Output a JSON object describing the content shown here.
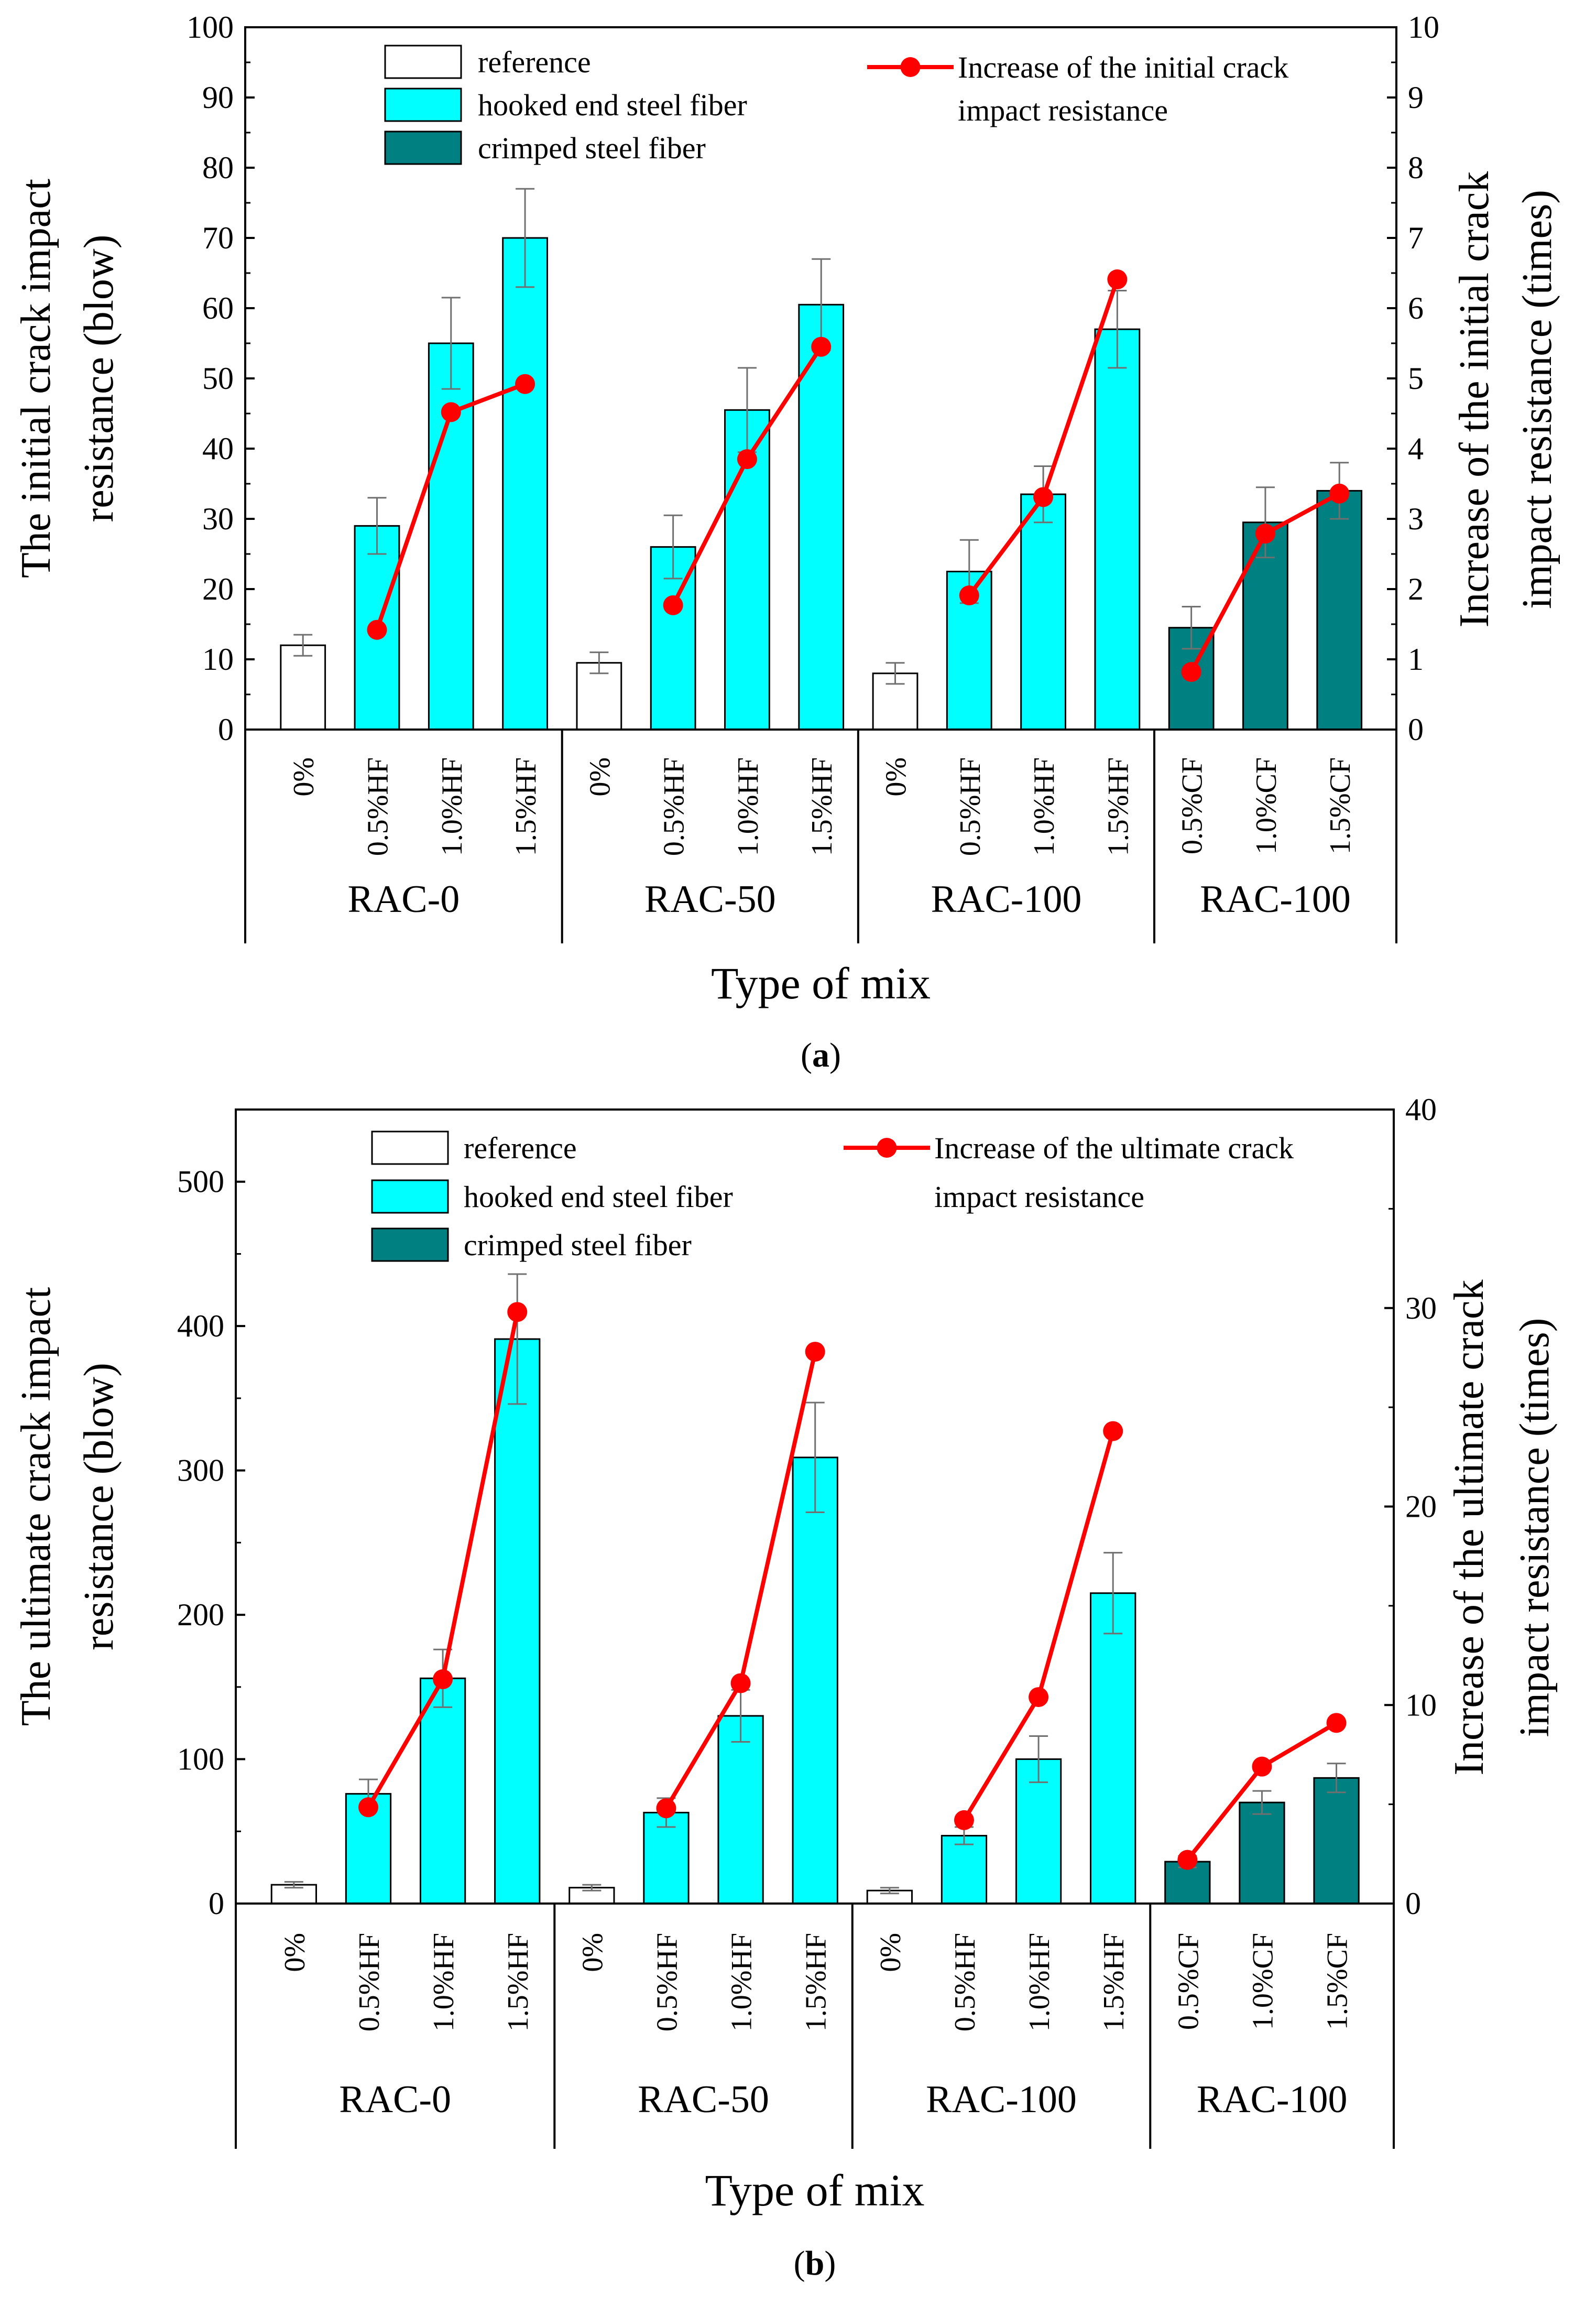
{
  "chart_data": [
    {
      "type": "bar",
      "panel": "a",
      "xlabel": "Type of mix",
      "ylabel_lines": [
        "The initial crack impact",
        "resistance (blow)"
      ],
      "y2label_lines": [
        "Increase of the initial crack",
        "impact resistance (times)"
      ],
      "ylim": [
        0,
        100
      ],
      "y2lim": [
        0,
        10
      ],
      "yticks": [
        "0",
        "10",
        "20",
        "30",
        "40",
        "50",
        "60",
        "70",
        "80",
        "90",
        "100"
      ],
      "y2ticks": [
        "0",
        "1",
        "2",
        "3",
        "4",
        "5",
        "6",
        "7",
        "8",
        "9",
        "10"
      ],
      "categories": [
        "0%",
        "0.5%HF",
        "1.0%HF",
        "1.5%HF",
        "0%",
        "0.5%HF",
        "1.0%HF",
        "1.5%HF",
        "0%",
        "0.5%HF",
        "1.0%HF",
        "1.5%HF",
        "0.5%CF",
        "1.0%CF",
        "1.5%CF"
      ],
      "groups": [
        "RAC-0",
        "RAC-50",
        "RAC-100",
        "RAC-100"
      ],
      "bar_types": [
        "reference",
        "hooked",
        "hooked",
        "hooked",
        "reference",
        "hooked",
        "hooked",
        "hooked",
        "reference",
        "hooked",
        "hooked",
        "hooked",
        "crimped",
        "crimped",
        "crimped"
      ],
      "values": [
        12,
        29,
        55,
        70,
        9.5,
        26,
        45.5,
        60.5,
        8,
        22.5,
        33.5,
        57,
        14.5,
        29.5,
        34
      ],
      "errors": [
        1.5,
        4,
        6.5,
        7,
        1.5,
        4.5,
        6,
        6.5,
        1.5,
        4.5,
        4,
        5.5,
        3,
        5,
        4
      ],
      "line_values": [
        1.42,
        4.52,
        4.92,
        1.77,
        3.85,
        5.45,
        1.91,
        3.31,
        6.41,
        0.82,
        2.79,
        3.36
      ],
      "line_indices": [
        1,
        2,
        3,
        5,
        6,
        7,
        9,
        10,
        11,
        12,
        13,
        14
      ],
      "legend": {
        "reference": "reference",
        "hooked": "hooked end steel fiber",
        "crimped": "crimped steel fiber",
        "line_lines": [
          "Increase of the initial crack",
          "impact resistance"
        ]
      },
      "panel_label": "a"
    },
    {
      "type": "bar",
      "panel": "b",
      "xlabel": "Type of mix",
      "ylabel_lines": [
        "The ultimate crack impact",
        "resistance (blow)"
      ],
      "y2label_lines": [
        "Increase of the ultimate crack",
        "impact resistance (times)"
      ],
      "ylim": [
        0,
        550
      ],
      "y2lim": [
        0,
        40
      ],
      "yticks": [
        "0",
        "100",
        "200",
        "300",
        "400",
        "500"
      ],
      "y2ticks": [
        "0",
        "10",
        "20",
        "30",
        "40"
      ],
      "categories": [
        "0%",
        "0.5%HF",
        "1.0%HF",
        "1.5%HF",
        "0%",
        "0.5%HF",
        "1.0%HF",
        "1.5%HF",
        "0%",
        "0.5%HF",
        "1.0%HF",
        "1.5%HF",
        "0.5%CF",
        "1.0%CF",
        "1.5%CF"
      ],
      "groups": [
        "RAC-0",
        "RAC-50",
        "RAC-100",
        "RAC-100"
      ],
      "bar_types": [
        "reference",
        "hooked",
        "hooked",
        "hooked",
        "reference",
        "hooked",
        "hooked",
        "hooked",
        "reference",
        "hooked",
        "hooked",
        "hooked",
        "crimped",
        "crimped",
        "crimped"
      ],
      "values": [
        13,
        76,
        156,
        391,
        11,
        63,
        130,
        309,
        9,
        47,
        100,
        215,
        29,
        70,
        87
      ],
      "errors": [
        2,
        10,
        20,
        45,
        2,
        10,
        18,
        38,
        2,
        6,
        16,
        28,
        4,
        8,
        10
      ],
      "line_values": [
        4.85,
        11.3,
        29.8,
        4.8,
        11.1,
        27.8,
        4.2,
        10.4,
        23.8,
        2.2,
        6.9,
        9.1
      ],
      "line_indices": [
        1,
        2,
        3,
        5,
        6,
        7,
        9,
        10,
        11,
        12,
        13,
        14
      ],
      "legend": {
        "reference": "reference",
        "hooked": "hooked end steel fiber",
        "crimped": "crimped steel fiber",
        "line_lines": [
          "Increase of the ultimate crack",
          "impact resistance"
        ]
      },
      "panel_label": "b"
    }
  ],
  "colors": {
    "reference": "#ffffff",
    "hooked": "#00ffff",
    "crimped": "#008080",
    "line": "#ff0000",
    "axis": "#000000",
    "error": "#707070"
  }
}
